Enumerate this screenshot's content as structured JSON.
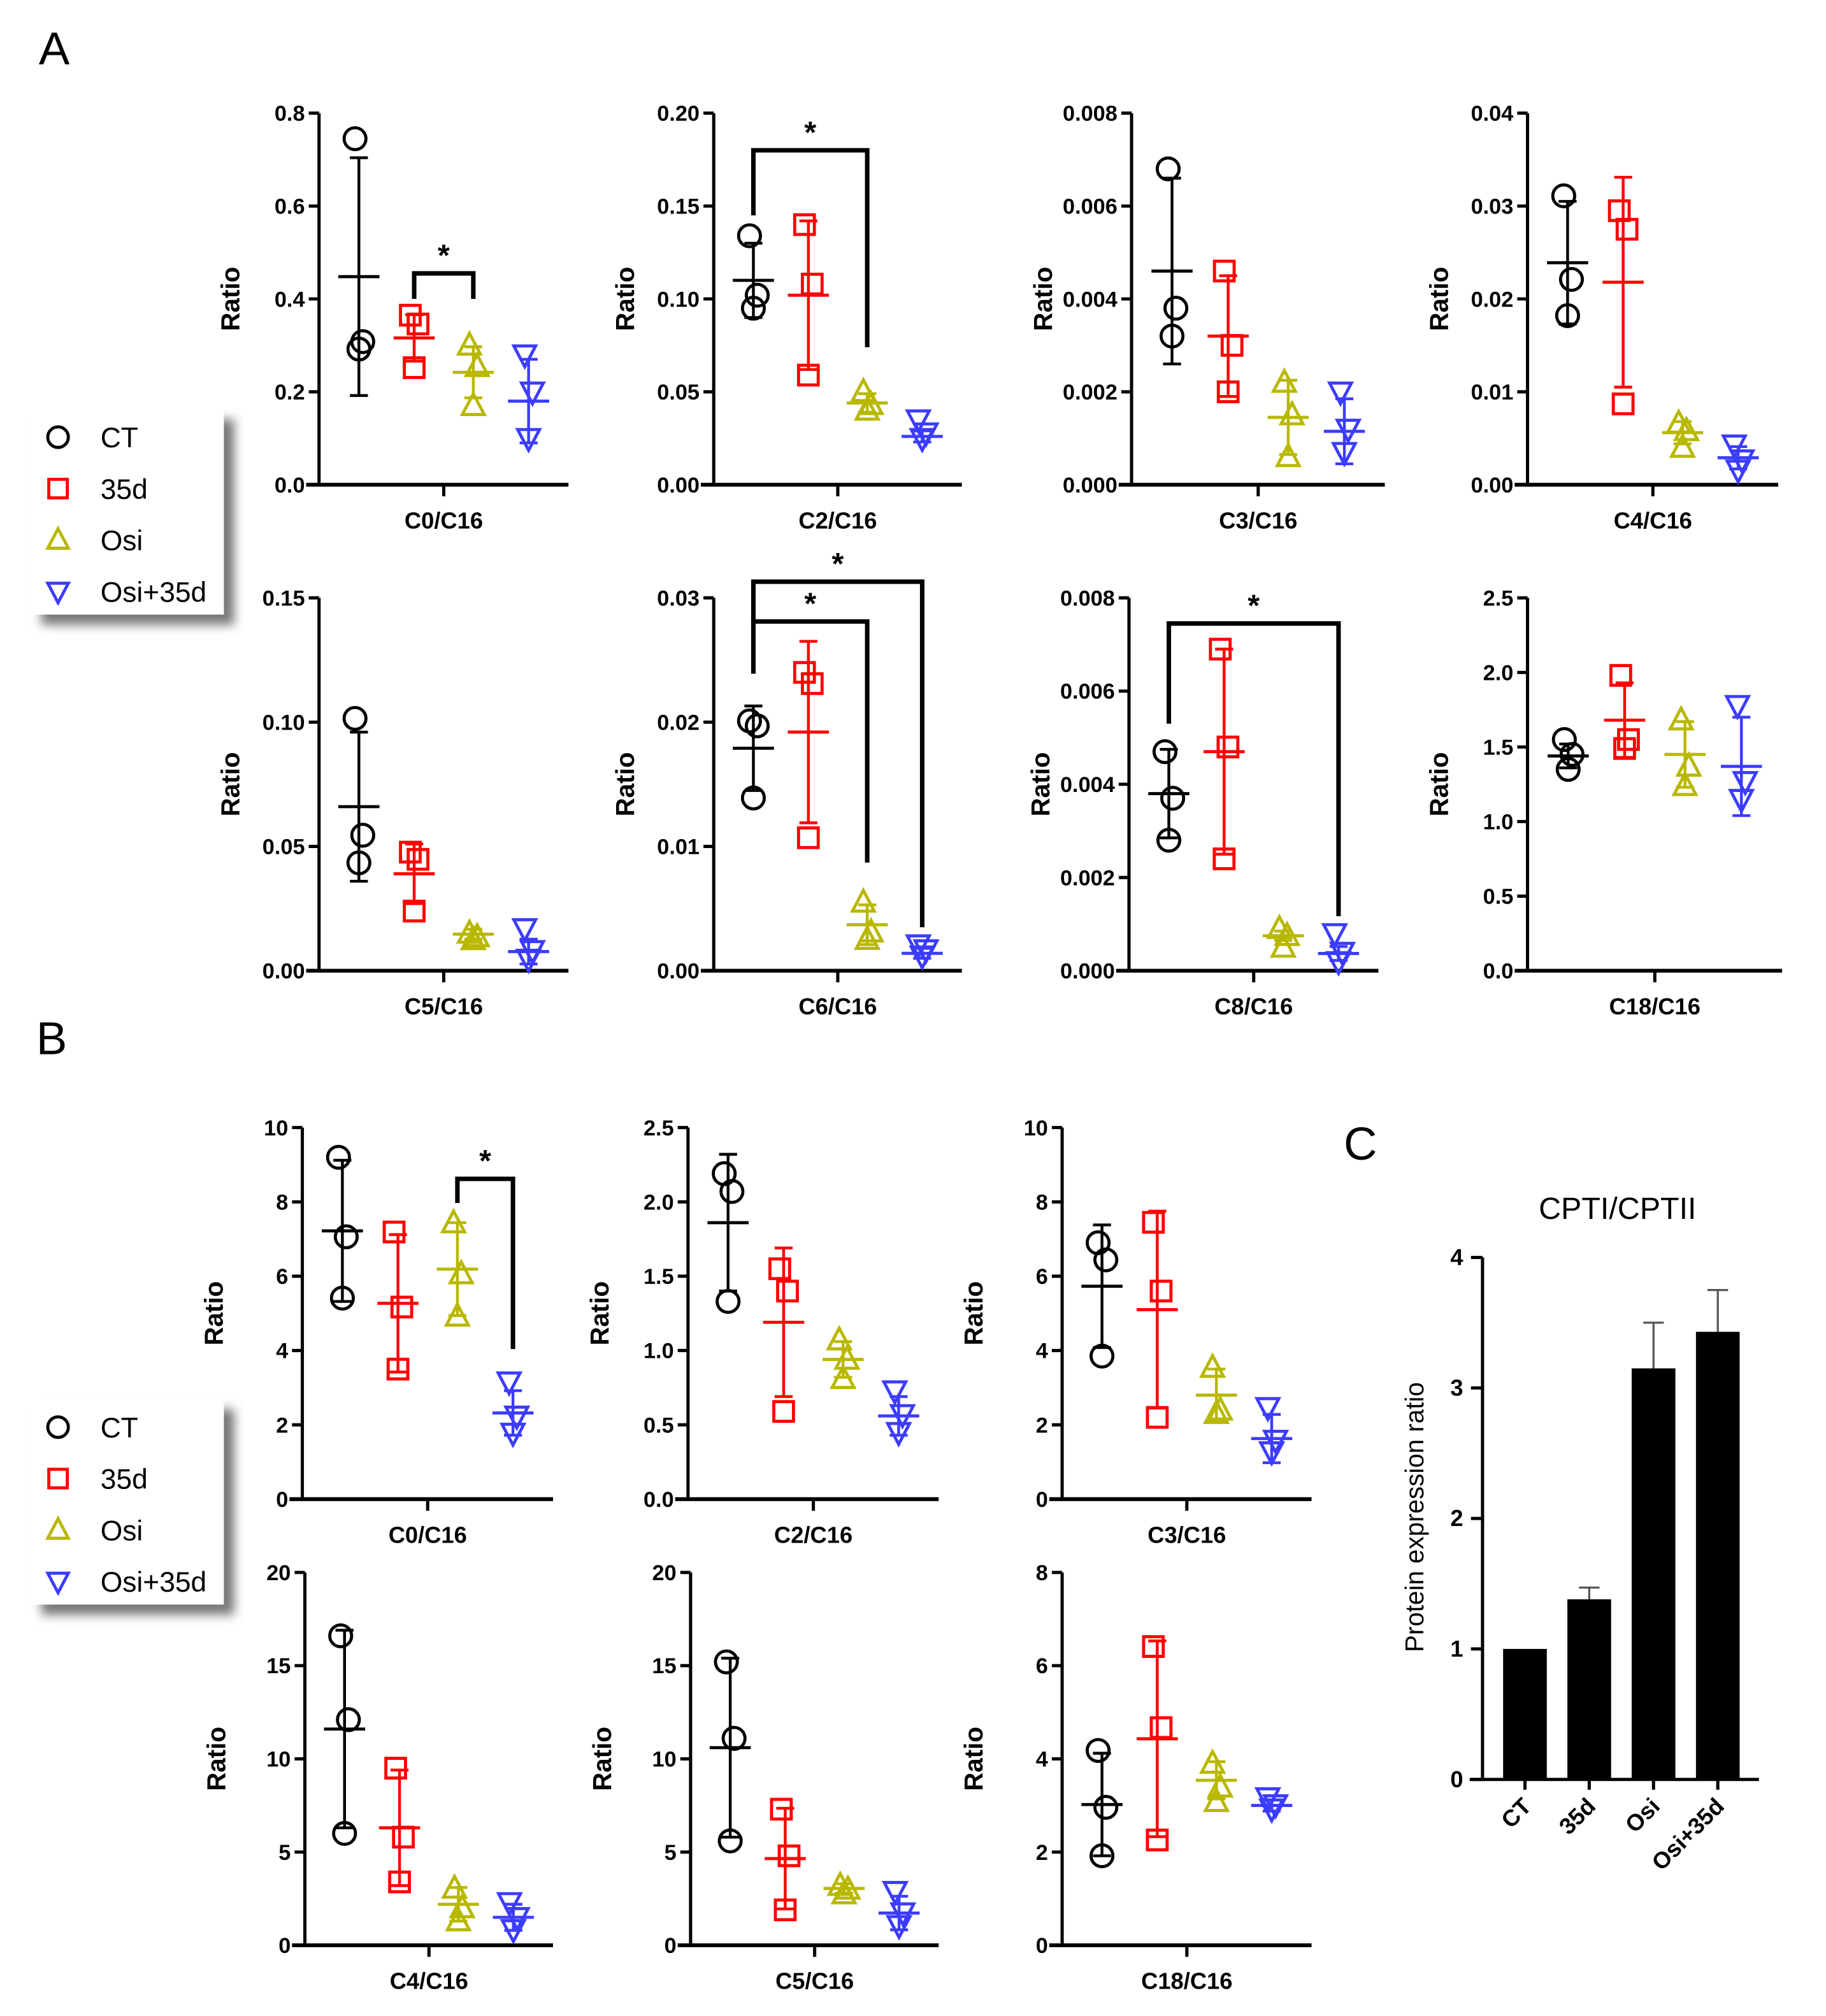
{
  "panel_labels": {
    "a": "A",
    "b": "B",
    "c": "C"
  },
  "legend": {
    "items": [
      {
        "label": "CT",
        "color": "#000000",
        "marker": "circle"
      },
      {
        "label": "35d",
        "color": "#ff0000",
        "marker": "square"
      },
      {
        "label": "Osi",
        "color": "#b8b800",
        "marker": "triangle-up"
      },
      {
        "label": "Osi+35d",
        "color": "#3c3cff",
        "marker": "triangle-down"
      }
    ]
  },
  "chart_data": [
    {
      "panel": "A",
      "type": "scatter",
      "xlabel": "C0/C16",
      "ylabel": "Ratio",
      "ylim": [
        0,
        0.8
      ],
      "yticks": [
        "0.0",
        "0.2",
        "0.4",
        "0.6",
        "0.8"
      ],
      "series": [
        {
          "name": "CT",
          "values": [
            0.745,
            0.308,
            0.292
          ],
          "mean": 0.448,
          "sd": 0.256
        },
        {
          "name": "35d",
          "values": [
            0.365,
            0.346,
            0.252
          ],
          "mean": 0.316,
          "sd": 0.05
        },
        {
          "name": "Osi",
          "values": [
            0.3,
            0.254,
            0.17
          ],
          "mean": 0.242,
          "sd": 0.055
        },
        {
          "name": "Osi+35d",
          "values": [
            0.28,
            0.2,
            0.1
          ],
          "mean": 0.18,
          "sd": 0.09
        }
      ],
      "significance": [
        {
          "from": 1,
          "to": 2,
          "label": "*",
          "y": 0.455,
          "left_end": 0.4,
          "right_end": 0.4
        }
      ]
    },
    {
      "panel": "A",
      "type": "scatter",
      "xlabel": "C2/C16",
      "ylabel": "Ratio",
      "ylim": [
        0,
        0.2
      ],
      "yticks": [
        "0.00",
        "0.05",
        "0.10",
        "0.15",
        "0.20"
      ],
      "series": [
        {
          "name": "CT",
          "values": [
            0.134,
            0.102,
            0.095
          ],
          "mean": 0.11,
          "sd": 0.02
        },
        {
          "name": "35d",
          "values": [
            0.14,
            0.108,
            0.059
          ],
          "mean": 0.102,
          "sd": 0.04
        },
        {
          "name": "Osi",
          "values": [
            0.05,
            0.043,
            0.04
          ],
          "mean": 0.044,
          "sd": 0.005
        },
        {
          "name": "Osi+35d",
          "values": [
            0.035,
            0.028,
            0.025
          ],
          "mean": 0.026,
          "sd": 0.003
        }
      ],
      "significance": [
        {
          "from": 0,
          "to": 2,
          "label": "*",
          "y": 0.18,
          "left_end": 0.145,
          "right_end": 0.074
        }
      ]
    },
    {
      "panel": "A",
      "type": "scatter",
      "xlabel": "C3/C16",
      "ylabel": "Ratio",
      "ylim": [
        0,
        0.008
      ],
      "yticks": [
        "0.000",
        "0.002",
        "0.004",
        "0.006",
        "0.008"
      ],
      "series": [
        {
          "name": "CT",
          "values": [
            0.0068,
            0.0038,
            0.0032
          ],
          "mean": 0.0046,
          "sd": 0.002
        },
        {
          "name": "35d",
          "values": [
            0.0046,
            0.003,
            0.002
          ],
          "mean": 0.0032,
          "sd": 0.0013
        },
        {
          "name": "Osi",
          "values": [
            0.0022,
            0.0015,
            0.0006
          ],
          "mean": 0.00145,
          "sd": 0.0008
        },
        {
          "name": "Osi+35d",
          "values": [
            0.002,
            0.0012,
            0.0007
          ],
          "mean": 0.00115,
          "sd": 0.0007
        }
      ],
      "significance": []
    },
    {
      "panel": "A",
      "type": "scatter",
      "xlabel": "C4/C16",
      "ylabel": "Ratio",
      "ylim": [
        0,
        0.04
      ],
      "yticks": [
        "0.00",
        "0.01",
        "0.02",
        "0.03",
        "0.04"
      ],
      "series": [
        {
          "name": "CT",
          "values": [
            0.0311,
            0.0221,
            0.0182
          ],
          "mean": 0.0239,
          "sd": 0.0066
        },
        {
          "name": "35d",
          "values": [
            0.0295,
            0.0275,
            0.0087
          ],
          "mean": 0.0218,
          "sd": 0.0113
        },
        {
          "name": "Osi",
          "values": [
            0.0066,
            0.0058,
            0.004
          ],
          "mean": 0.0056,
          "sd": 0.0012
        },
        {
          "name": "Osi+35d",
          "values": [
            0.0043,
            0.0027,
            0.0016
          ],
          "mean": 0.0029,
          "sd": 0.0012
        }
      ],
      "significance": []
    },
    {
      "panel": "A",
      "type": "scatter",
      "xlabel": "C5/C16",
      "ylabel": "Ratio",
      "ylim": [
        0,
        0.15
      ],
      "yticks": [
        "0.00",
        "0.05",
        "0.10",
        "0.15"
      ],
      "series": [
        {
          "name": "CT",
          "values": [
            0.1015,
            0.0545,
            0.0434
          ],
          "mean": 0.066,
          "sd": 0.03
        },
        {
          "name": "35d",
          "values": [
            0.0477,
            0.0448,
            0.024
          ],
          "mean": 0.039,
          "sd": 0.012
        },
        {
          "name": "Osi",
          "values": [
            0.015,
            0.0136,
            0.0124
          ],
          "mean": 0.0147,
          "sd": 0.002
        },
        {
          "name": "Osi+35d",
          "values": [
            0.017,
            0.0082,
            0.0047
          ],
          "mean": 0.0077,
          "sd": 0.005
        }
      ],
      "significance": []
    },
    {
      "panel": "A",
      "type": "scatter",
      "xlabel": "C6/C16",
      "ylabel": "Ratio",
      "ylim": [
        0,
        0.03
      ],
      "yticks": [
        "0.00",
        "0.01",
        "0.02",
        "0.03"
      ],
      "series": [
        {
          "name": "CT",
          "values": [
            0.0201,
            0.0197,
            0.0139
          ],
          "mean": 0.0179,
          "sd": 0.0034
        },
        {
          "name": "35d",
          "values": [
            0.024,
            0.0231,
            0.0107
          ],
          "mean": 0.0192,
          "sd": 0.0073
        },
        {
          "name": "Osi",
          "values": [
            0.0055,
            0.0031,
            0.0025
          ],
          "mean": 0.0037,
          "sd": 0.0016
        },
        {
          "name": "Osi+35d",
          "values": [
            0.0021,
            0.0017,
            0.0012
          ],
          "mean": 0.0014,
          "sd": 0.0004
        }
      ],
      "significance": [
        {
          "from": 0,
          "to": 2,
          "label": "*",
          "y": 0.0281,
          "left_end": 0.0239,
          "right_end": 0.0087
        },
        {
          "from": 0,
          "to": 3,
          "label": "*",
          "y": 0.0313,
          "left_end": 0.0239,
          "right_end": 0.0035
        }
      ]
    },
    {
      "panel": "A",
      "type": "scatter",
      "xlabel": "C8/C16",
      "ylabel": "Ratio",
      "ylim": [
        0,
        0.008
      ],
      "yticks": [
        "0.000",
        "0.002",
        "0.004",
        "0.006",
        "0.008"
      ],
      "series": [
        {
          "name": "CT",
          "values": [
            0.0047,
            0.0037,
            0.0028
          ],
          "mean": 0.0038,
          "sd": 0.00095
        },
        {
          "name": "35d",
          "values": [
            0.0069,
            0.0048,
            0.0024
          ],
          "mean": 0.0047,
          "sd": 0.0022
        },
        {
          "name": "Osi",
          "values": [
            0.0009,
            0.00075,
            0.0005
          ],
          "mean": 0.00075,
          "sd": 0.0001
        },
        {
          "name": "Osi+35d",
          "values": [
            0.0008,
            0.0004,
            0.0002
          ],
          "mean": 0.00037,
          "sd": 0.00015
        }
      ],
      "significance": [
        {
          "from": 0,
          "to": 3,
          "label": "*",
          "y": 0.00745,
          "left_end": 0.0053,
          "right_end": 0.00117
        }
      ]
    },
    {
      "panel": "A",
      "type": "scatter",
      "xlabel": "C18/C16",
      "ylabel": "Ratio",
      "ylim": [
        0,
        2.5
      ],
      "yticks": [
        "0.0",
        "0.5",
        "1.0",
        "1.5",
        "2.0",
        "2.5"
      ],
      "series": [
        {
          "name": "CT",
          "values": [
            1.55,
            1.45,
            1.35
          ],
          "mean": 1.44,
          "sd": 0.08
        },
        {
          "name": "35d",
          "values": [
            1.98,
            1.55,
            1.49
          ],
          "mean": 1.68,
          "sd": 0.25
        },
        {
          "name": "Osi",
          "values": [
            1.68,
            1.37,
            1.24
          ],
          "mean": 1.45,
          "sd": 0.22
        },
        {
          "name": "Osi+35d",
          "values": [
            1.78,
            1.27,
            1.15
          ],
          "mean": 1.37,
          "sd": 0.33
        }
      ],
      "significance": []
    },
    {
      "panel": "B",
      "type": "scatter",
      "xlabel": "C0/C16",
      "ylabel": "Ratio",
      "ylim": [
        0,
        10
      ],
      "yticks": [
        "0",
        "2",
        "4",
        "6",
        "8",
        "10"
      ],
      "series": [
        {
          "name": "CT",
          "values": [
            9.2,
            7.06,
            5.41
          ],
          "mean": 7.22,
          "sd": 1.9
        },
        {
          "name": "35d",
          "values": [
            7.19,
            5.17,
            3.5
          ],
          "mean": 5.27,
          "sd": 1.85
        },
        {
          "name": "Osi",
          "values": [
            7.43,
            6.06,
            4.92
          ],
          "mean": 6.19,
          "sd": 1.25
        },
        {
          "name": "Osi+35d",
          "values": [
            3.16,
            2.24,
            1.78
          ],
          "mean": 2.32,
          "sd": 0.6
        }
      ],
      "significance": [
        {
          "from": 2,
          "to": 3,
          "label": "*",
          "y": 8.62,
          "left_end": 7.97,
          "right_end": 4.04
        }
      ]
    },
    {
      "panel": "B",
      "type": "scatter",
      "xlabel": "C2/C16",
      "ylabel": "Ratio",
      "ylim": [
        0,
        2.5
      ],
      "yticks": [
        "0.0",
        "0.5",
        "1.0",
        "1.5",
        "2.0",
        "2.5"
      ],
      "series": [
        {
          "name": "CT",
          "values": [
            2.19,
            2.07,
            1.33
          ],
          "mean": 1.86,
          "sd": 0.46
        },
        {
          "name": "35d",
          "values": [
            1.55,
            1.4,
            0.59
          ],
          "mean": 1.19,
          "sd": 0.5
        },
        {
          "name": "Osi",
          "values": [
            1.07,
            0.94,
            0.81
          ],
          "mean": 0.94,
          "sd": 0.12
        },
        {
          "name": "Osi+35d",
          "values": [
            0.73,
            0.57,
            0.45
          ],
          "mean": 0.56,
          "sd": 0.13
        }
      ],
      "significance": []
    },
    {
      "panel": "B",
      "type": "scatter",
      "xlabel": "C3/C16",
      "ylabel": "Ratio",
      "ylim": [
        0,
        10
      ],
      "yticks": [
        "0",
        "2",
        "4",
        "6",
        "8",
        "10"
      ],
      "series": [
        {
          "name": "CT",
          "values": [
            6.9,
            6.44,
            3.85
          ],
          "mean": 5.73,
          "sd": 1.65
        },
        {
          "name": "35d",
          "values": [
            7.45,
            5.6,
            2.2
          ],
          "mean": 5.1,
          "sd": 2.65
        },
        {
          "name": "Osi",
          "values": [
            3.54,
            2.39,
            2.3
          ],
          "mean": 2.8,
          "sd": 0.7
        },
        {
          "name": "Osi+35d",
          "values": [
            2.47,
            1.59,
            1.28
          ],
          "mean": 1.63,
          "sd": 0.65
        }
      ],
      "significance": []
    },
    {
      "panel": "B",
      "type": "scatter",
      "xlabel": "C4/C16",
      "ylabel": "Ratio",
      "ylim": [
        0,
        20
      ],
      "yticks": [
        "0",
        "5",
        "10",
        "15",
        "20"
      ],
      "series": [
        {
          "name": "CT",
          "values": [
            16.6,
            12.1,
            6.0
          ],
          "mean": 11.6,
          "sd": 5.3
        },
        {
          "name": "35d",
          "values": [
            9.5,
            5.8,
            3.4
          ],
          "mean": 6.3,
          "sd": 3.1
        },
        {
          "name": "Osi",
          "values": [
            3.05,
            2.0,
            1.3
          ],
          "mean": 2.2,
          "sd": 0.9
        },
        {
          "name": "Osi+35d",
          "values": [
            2.3,
            1.5,
            0.85
          ],
          "mean": 1.5,
          "sd": 0.7
        }
      ],
      "significance": []
    },
    {
      "panel": "B",
      "type": "scatter",
      "xlabel": "C5/C16",
      "ylabel": "Ratio",
      "ylim": [
        0,
        20
      ],
      "yticks": [
        "0",
        "5",
        "10",
        "15",
        "20"
      ],
      "series": [
        {
          "name": "CT",
          "values": [
            15.2,
            11.1,
            5.6
          ],
          "mean": 10.6,
          "sd": 4.8
        },
        {
          "name": "35d",
          "values": [
            7.3,
            4.8,
            1.9
          ],
          "mean": 4.65,
          "sd": 2.7
        },
        {
          "name": "Osi",
          "values": [
            3.2,
            3.0,
            2.75
          ],
          "mean": 3.05,
          "sd": 0.25
        },
        {
          "name": "Osi+35d",
          "values": [
            2.9,
            1.75,
            1.07
          ],
          "mean": 1.73,
          "sd": 0.9
        }
      ],
      "significance": []
    },
    {
      "panel": "B",
      "type": "scatter",
      "xlabel": "C18/C16",
      "ylabel": "Ratio",
      "ylim": [
        0,
        8
      ],
      "yticks": [
        "0",
        "2",
        "4",
        "6",
        "8"
      ],
      "series": [
        {
          "name": "CT",
          "values": [
            4.18,
            2.96,
            1.92
          ],
          "mean": 3.02,
          "sd": 1.1
        },
        {
          "name": "35d",
          "values": [
            6.41,
            4.67,
            2.26
          ],
          "mean": 4.43,
          "sd": 2.1
        },
        {
          "name": "Osi",
          "values": [
            3.9,
            3.39,
            3.08
          ],
          "mean": 3.54,
          "sd": 0.4
        },
        {
          "name": "Osi+35d",
          "values": [
            3.17,
            3.02,
            2.93
          ],
          "mean": 3.0,
          "sd": 0.12
        }
      ],
      "significance": []
    },
    {
      "panel": "C",
      "type": "bar",
      "title": "CPTI/CPTII",
      "xlabel": "",
      "ylabel": "Protein expression ratio",
      "ylim": [
        0,
        4
      ],
      "yticks": [
        "0",
        "1",
        "2",
        "3",
        "4"
      ],
      "categories": [
        "CT",
        "35d",
        "Osi",
        "Osi+35d"
      ],
      "values": [
        1.0,
        1.38,
        3.15,
        3.43
      ],
      "error_upper": [
        1.0,
        1.47,
        3.5,
        3.75
      ],
      "bar_color": "#000000"
    }
  ]
}
